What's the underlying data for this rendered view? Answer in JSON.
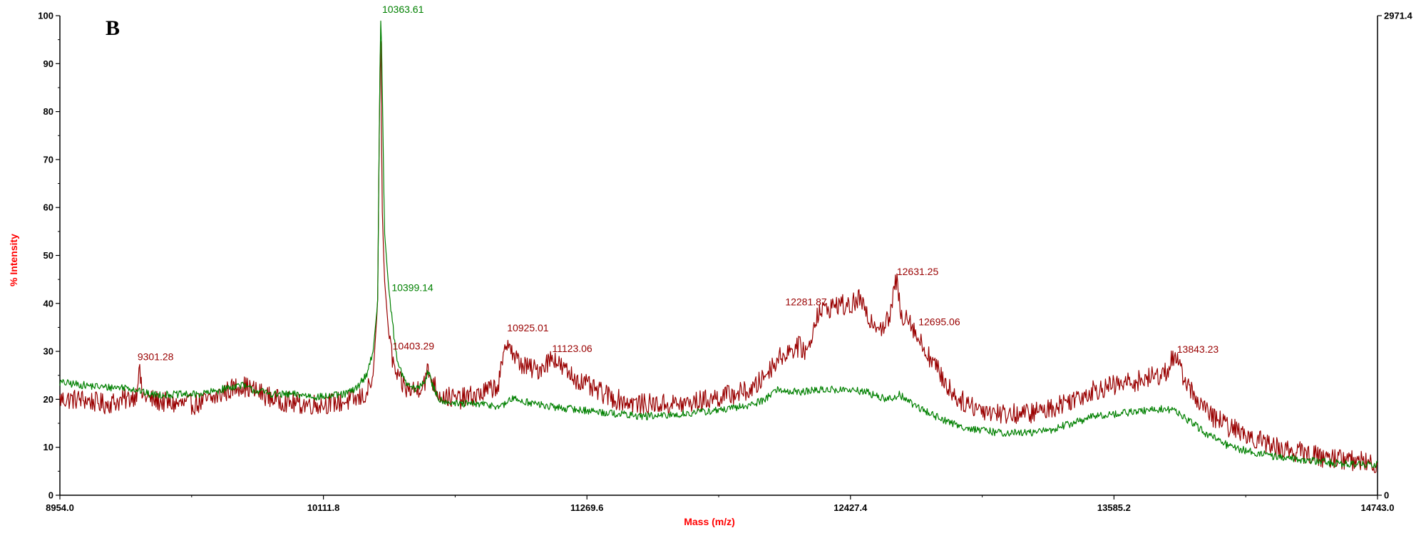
{
  "panel_label": "B",
  "colors": {
    "red_series": "#990000",
    "green_series": "#008000",
    "axis_title": "#ff0000",
    "axis": "#000000"
  },
  "chart_data": {
    "type": "line",
    "panel": "B",
    "xlabel": "Mass (m/z)",
    "ylabel": "% Intensity",
    "xlim": [
      8954.0,
      14743.0
    ],
    "ylim": [
      0,
      100
    ],
    "x_ticks": [
      8954.0,
      10111.8,
      11269.6,
      12427.4,
      13585.2,
      14743.0
    ],
    "x_tick_labels": [
      "8954.0",
      "10111.8",
      "11269.6",
      "12427.4",
      "13585.2",
      "14743.0"
    ],
    "y_ticks": [
      0,
      10,
      20,
      30,
      40,
      50,
      60,
      70,
      80,
      90,
      100
    ],
    "y_tick_labels": [
      "0",
      "10",
      "20",
      "30",
      "40",
      "50",
      "60",
      "70",
      "80",
      "90",
      "100"
    ],
    "right_axis": {
      "labels": [
        "2971.4",
        "0"
      ],
      "values": [
        2971.4,
        0
      ]
    },
    "grid": false,
    "legend": "none",
    "series": [
      {
        "color": "#990000",
        "noise": 2.2,
        "x": [
          8954,
          9050,
          9150,
          9250,
          9290,
          9301,
          9315,
          9350,
          9450,
          9550,
          9620,
          9700,
          9750,
          9800,
          9900,
          10000,
          10100,
          10200,
          10260,
          10300,
          10330,
          10350,
          10358,
          10363,
          10370,
          10380,
          10400,
          10420,
          10440,
          10480,
          10520,
          10560,
          10570,
          10590,
          10620,
          10700,
          10800,
          10880,
          10910,
          10925,
          10945,
          10990,
          11050,
          11100,
          11123,
          11150,
          11200,
          11300,
          11400,
          11500,
          11600,
          11700,
          11800,
          11900,
          12000,
          12050,
          12100,
          12150,
          12200,
          12240,
          12281,
          12330,
          12380,
          12420,
          12440,
          12470,
          12500,
          12540,
          12570,
          12600,
          12620,
          12631,
          12650,
          12670,
          12695,
          12720,
          12760,
          12800,
          12850,
          12900,
          13000,
          13100,
          13200,
          13300,
          13400,
          13500,
          13600,
          13700,
          13780,
          13820,
          13843,
          13870,
          13920,
          14000,
          14100,
          14200,
          14300,
          14400,
          14500,
          14600,
          14743
        ],
        "y": [
          20,
          20,
          19,
          20,
          21,
          27,
          21,
          20,
          19,
          19,
          20,
          22,
          23,
          22,
          20,
          19,
          19,
          19.5,
          20,
          21,
          25,
          40,
          80,
          99,
          60,
          45,
          33,
          27,
          24,
          22,
          22,
          24,
          26,
          24,
          21,
          20,
          21,
          23,
          30,
          33,
          29,
          27,
          26,
          28,
          29,
          27,
          25,
          22,
          20,
          19,
          19,
          19,
          20,
          21,
          22,
          25,
          28,
          30,
          31,
          30,
          38,
          39,
          40,
          39,
          40,
          41,
          37,
          36,
          35,
          37,
          43,
          45,
          37,
          38,
          36,
          33,
          30,
          27,
          23,
          20,
          18,
          17,
          17,
          18,
          20,
          22,
          23,
          24,
          25,
          26,
          29,
          27,
          22,
          17,
          14,
          12,
          10,
          9,
          8,
          7.5,
          6.5
        ]
      },
      {
        "color": "#008000",
        "noise": 0.8,
        "x": [
          8954,
          9050,
          9150,
          9250,
          9290,
          9301,
          9315,
          9350,
          9450,
          9550,
          9620,
          9700,
          9750,
          9800,
          9900,
          10000,
          10100,
          10200,
          10250,
          10300,
          10330,
          10350,
          10358,
          10363,
          10368,
          10380,
          10399,
          10420,
          10440,
          10480,
          10520,
          10560,
          10570,
          10590,
          10620,
          10700,
          10800,
          10900,
          10930,
          10960,
          11000,
          11100,
          11200,
          11300,
          11400,
          11500,
          11600,
          11700,
          11800,
          11900,
          12000,
          12050,
          12100,
          12200,
          12300,
          12400,
          12500,
          12550,
          12600,
          12640,
          12700,
          12800,
          12900,
          13000,
          13100,
          13200,
          13300,
          13400,
          13500,
          13600,
          13700,
          13800,
          13860,
          13900,
          14000,
          14100,
          14200,
          14300,
          14400,
          14500,
          14600,
          14743
        ],
        "y": [
          23.5,
          23,
          22.5,
          22.5,
          22,
          22,
          21.5,
          21,
          21,
          21,
          21.5,
          22.5,
          23,
          22,
          21,
          21,
          20.5,
          21,
          22,
          25,
          30,
          40,
          80,
          100,
          93,
          55,
          43,
          34,
          27,
          23,
          22,
          24,
          26,
          23,
          20,
          19,
          19,
          18.5,
          20,
          20,
          19.5,
          18.5,
          18,
          17.5,
          17,
          16.5,
          16.5,
          17,
          17.5,
          18,
          19,
          20,
          22,
          21.5,
          22,
          22,
          21.5,
          20.5,
          20,
          21,
          19,
          16.5,
          14.5,
          13.5,
          13,
          13,
          13.5,
          15,
          16.5,
          17,
          17.5,
          18,
          17.5,
          16,
          12.5,
          10,
          9,
          8,
          7.5,
          7,
          6.5,
          6.5
        ]
      }
    ],
    "annotations": [
      {
        "text": "10363.61",
        "x": 10363.61,
        "y": 100,
        "color": "#008000"
      },
      {
        "text": "10399.14",
        "x": 10399.14,
        "y": 43,
        "color": "#008000"
      },
      {
        "text": "9301.28",
        "x": 9301.28,
        "y": 27,
        "color": "#990000"
      },
      {
        "text": "10403.29",
        "x": 10403.29,
        "y": 31,
        "color": "#990000"
      },
      {
        "text": "10925.01",
        "x": 10925.01,
        "y": 33,
        "color": "#990000"
      },
      {
        "text": "11123.06",
        "x": 11123.06,
        "y": 29,
        "color": "#990000"
      },
      {
        "text": "12281.87",
        "x": 12281.87,
        "y": 39,
        "color": "#990000"
      },
      {
        "text": "12631.25",
        "x": 12631.25,
        "y": 45,
        "color": "#990000"
      },
      {
        "text": "12695.06",
        "x": 12695.06,
        "y": 36,
        "color": "#990000"
      },
      {
        "text": "13843.23",
        "x": 13843.23,
        "y": 29,
        "color": "#990000"
      }
    ]
  }
}
